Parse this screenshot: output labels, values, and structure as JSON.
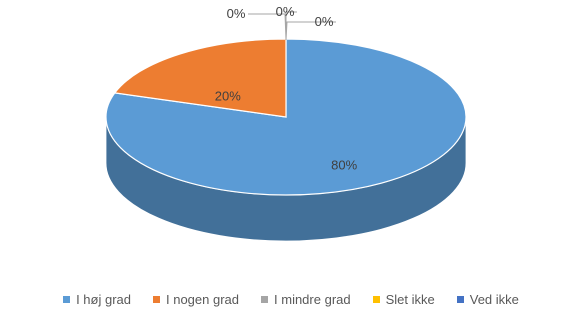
{
  "chart_data": {
    "type": "pie",
    "variant": "3d",
    "categories": [
      "I høj grad",
      "I nogen grad",
      "I mindre grad",
      "Slet ikke",
      "Ved ikke"
    ],
    "values": [
      80,
      20,
      0,
      0,
      0
    ],
    "data_labels": [
      "80%",
      "20%",
      "0%",
      "0%",
      "0%"
    ],
    "colors": [
      "#5b9bd5",
      "#ed7d31",
      "#a5a5a5",
      "#ffc000",
      "#4472c4"
    ],
    "legend_position": "bottom"
  }
}
